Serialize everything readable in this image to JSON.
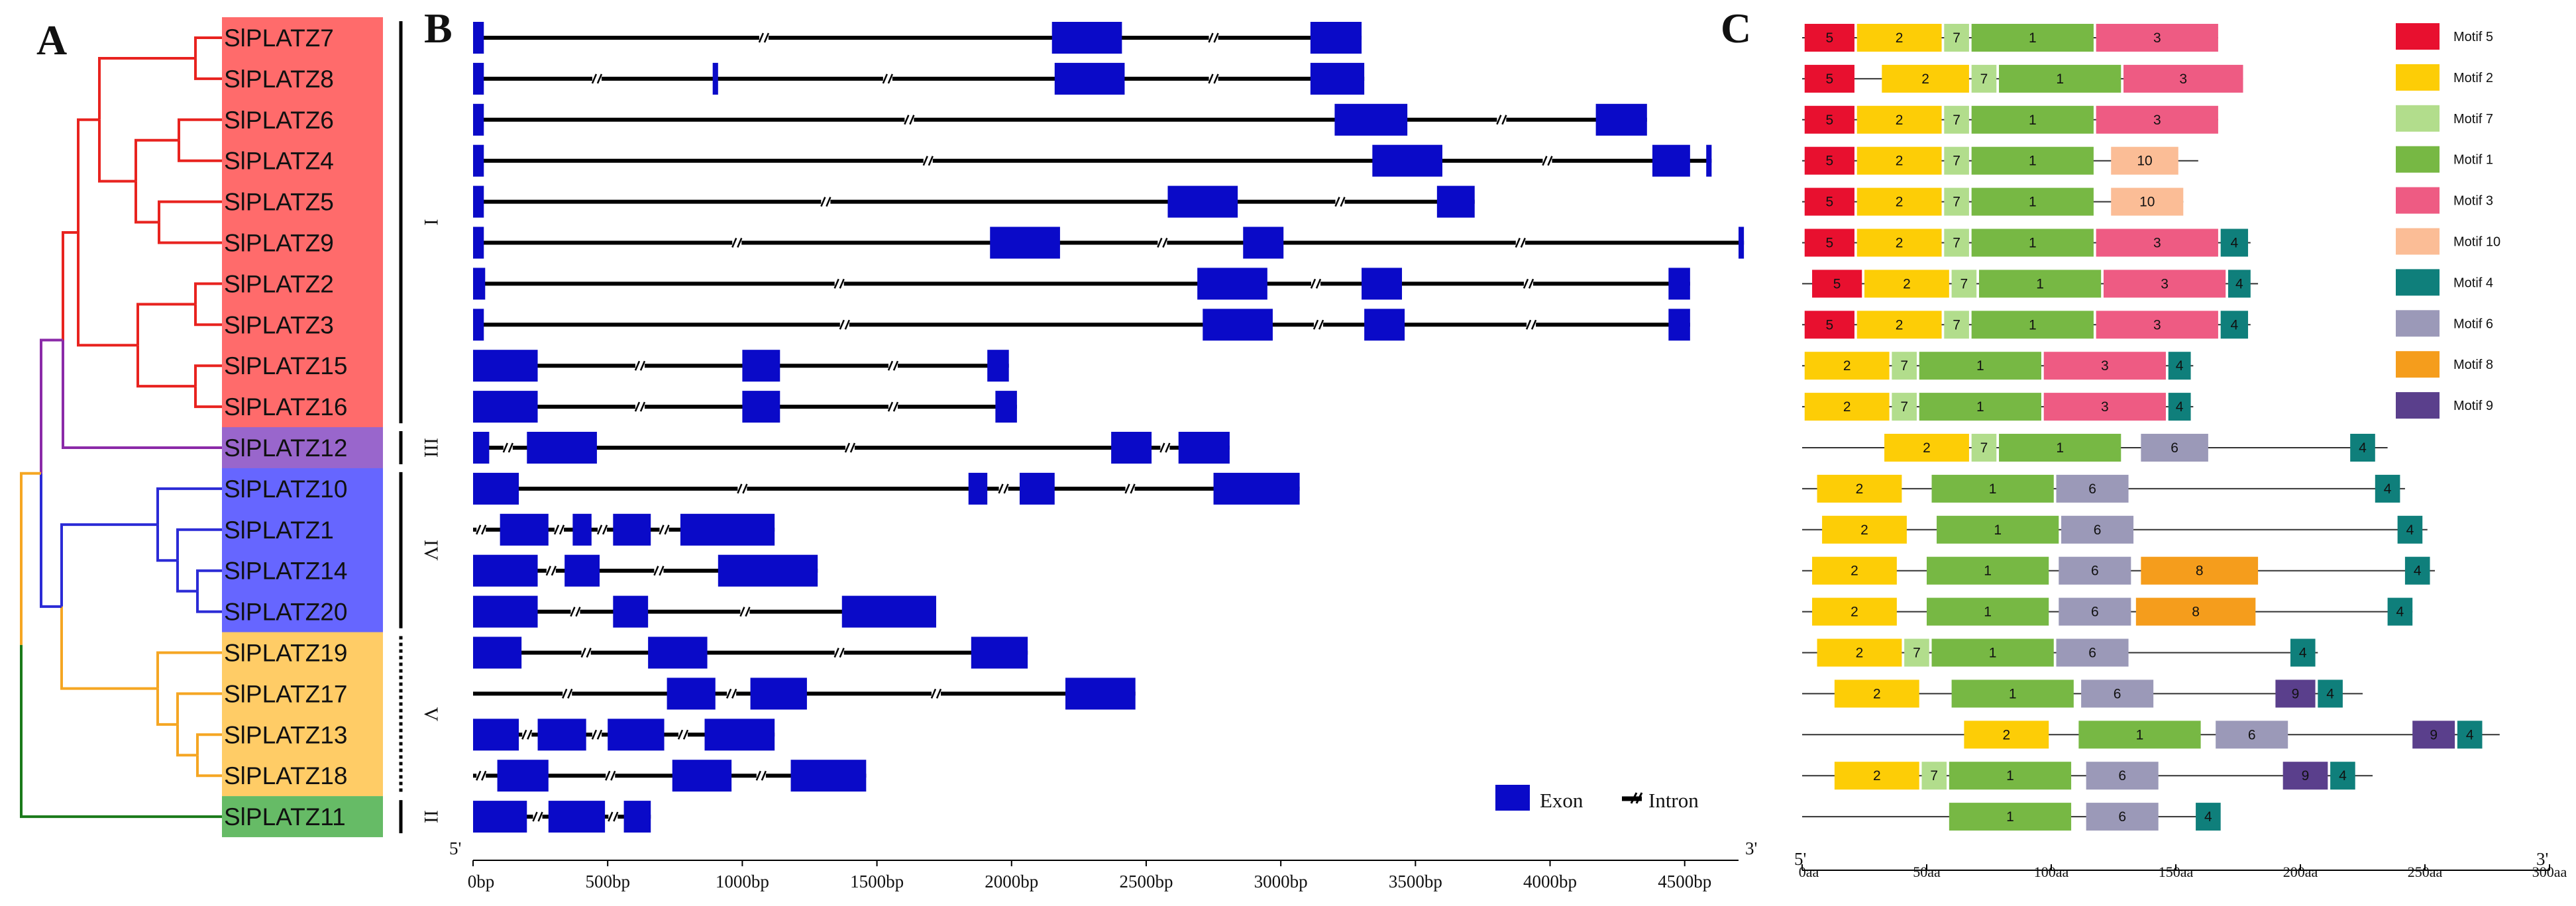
{
  "panel_labels": {
    "a": "A",
    "b": "B",
    "c": "C"
  },
  "genes": [
    "SlPLATZ7",
    "SlPLATZ8",
    "SlPLATZ6",
    "SlPLATZ4",
    "SlPLATZ5",
    "SlPLATZ9",
    "SlPLATZ2",
    "SlPLATZ3",
    "SlPLATZ15",
    "SlPLATZ16",
    "SlPLATZ12",
    "SlPLATZ10",
    "SlPLATZ1",
    "SlPLATZ14",
    "SlPLATZ20",
    "SlPLATZ19",
    "SlPLATZ17",
    "SlPLATZ13",
    "SlPLATZ18",
    "SlPLATZ11"
  ],
  "groups": [
    {
      "label": "I",
      "first": 0,
      "last": 9,
      "color": "#ff6b6b",
      "line": "solid"
    },
    {
      "label": "III",
      "first": 10,
      "last": 10,
      "color": "#9966cc",
      "line": "solid"
    },
    {
      "label": "IV",
      "first": 11,
      "last": 14,
      "color": "#6666ff",
      "line": "solid"
    },
    {
      "label": "V",
      "first": 15,
      "last": 18,
      "color": "#ffcc66",
      "line": "dotted"
    },
    {
      "label": "II",
      "first": 19,
      "last": 19,
      "color": "#66bb66",
      "line": "solid"
    }
  ],
  "tree_colors": {
    "I": "#e8231f",
    "III": "#8b2aa8",
    "IV": "#2b2bd6",
    "V": "#f5a623",
    "II": "#1a7a1a"
  },
  "gene_structure": {
    "axis_ticks": [
      "0bp",
      "500bp",
      "1000bp",
      "1500bp",
      "2000bp",
      "2500bp",
      "3000bp",
      "3500bp",
      "4000bp",
      "4500bp"
    ],
    "axis_tick_values": [
      0,
      500,
      1000,
      1500,
      2000,
      2500,
      3000,
      3500,
      4000,
      4500
    ],
    "x_max": 4700,
    "five_prime": "5'",
    "three_prime": "3'",
    "legend": {
      "exon": "Exon",
      "intron": "Intron"
    },
    "exon_color": "#0a0ac8",
    "genes": [
      {
        "length": 3300,
        "exons": [
          [
            0,
            40
          ],
          [
            2150,
            2410
          ],
          [
            3110,
            3300
          ]
        ],
        "breaks": [
          1080,
          2750
        ]
      },
      {
        "length": 3310,
        "exons": [
          [
            0,
            40
          ],
          [
            890,
            910
          ],
          [
            2160,
            2420
          ],
          [
            3110,
            3310
          ]
        ],
        "breaks": [
          460,
          1540,
          2750
        ]
      },
      {
        "length": 4360,
        "exons": [
          [
            0,
            40
          ],
          [
            3200,
            3470
          ],
          [
            4170,
            4360
          ]
        ],
        "breaks": [
          1620,
          3820
        ]
      },
      {
        "length": 4600,
        "exons": [
          [
            0,
            40
          ],
          [
            3340,
            3600
          ],
          [
            4380,
            4520
          ],
          [
            4580,
            4600
          ]
        ],
        "breaks": [
          1690,
          3990
        ]
      },
      {
        "length": 3720,
        "exons": [
          [
            0,
            40
          ],
          [
            2580,
            2840
          ],
          [
            3580,
            3720
          ]
        ],
        "breaks": [
          1310,
          3220
        ]
      },
      {
        "length": 4720,
        "exons": [
          [
            0,
            40
          ],
          [
            1920,
            2180
          ],
          [
            2860,
            3010
          ],
          [
            4700,
            4720
          ]
        ],
        "breaks": [
          980,
          2560,
          3890
        ]
      },
      {
        "length": 4520,
        "exons": [
          [
            0,
            45
          ],
          [
            2690,
            2950
          ],
          [
            3300,
            3450
          ],
          [
            4440,
            4520
          ]
        ],
        "breaks": [
          1360,
          3130,
          3920
        ]
      },
      {
        "length": 4520,
        "exons": [
          [
            0,
            40
          ],
          [
            2710,
            2970
          ],
          [
            3310,
            3460
          ],
          [
            4440,
            4520
          ]
        ],
        "breaks": [
          1380,
          3140,
          3930
        ]
      },
      {
        "length": 1990,
        "exons": [
          [
            0,
            240
          ],
          [
            1000,
            1140
          ],
          [
            1910,
            1990
          ]
        ],
        "breaks": [
          620,
          1560
        ]
      },
      {
        "length": 2020,
        "exons": [
          [
            0,
            240
          ],
          [
            1000,
            1140
          ],
          [
            1940,
            2020
          ]
        ],
        "breaks": [
          620,
          1560
        ]
      },
      {
        "length": 2810,
        "exons": [
          [
            0,
            60
          ],
          [
            200,
            460
          ],
          [
            2370,
            2520
          ],
          [
            2620,
            2810
          ]
        ],
        "breaks": [
          130,
          1400,
          2570
        ]
      },
      {
        "length": 3070,
        "exons": [
          [
            0,
            170
          ],
          [
            1840,
            1910
          ],
          [
            2030,
            2160
          ],
          [
            2750,
            3070
          ]
        ],
        "breaks": [
          1000,
          1970,
          2440
        ]
      },
      {
        "length": 1120,
        "exons": [
          [
            100,
            280
          ],
          [
            370,
            440
          ],
          [
            520,
            660
          ],
          [
            770,
            1120
          ]
        ],
        "breaks": [
          30,
          320,
          480,
          710
        ]
      },
      {
        "length": 1280,
        "exons": [
          [
            0,
            240
          ],
          [
            340,
            470
          ],
          [
            910,
            1280
          ]
        ],
        "breaks": [
          290,
          690
        ]
      },
      {
        "length": 1720,
        "exons": [
          [
            0,
            240
          ],
          [
            520,
            650
          ],
          [
            1370,
            1720
          ]
        ],
        "breaks": [
          380,
          1010
        ]
      },
      {
        "length": 2060,
        "exons": [
          [
            0,
            180
          ],
          [
            650,
            870
          ],
          [
            1850,
            2060
          ]
        ],
        "breaks": [
          420,
          1360
        ]
      },
      {
        "length": 2460,
        "exons": [
          [
            720,
            900
          ],
          [
            1030,
            1240
          ],
          [
            2200,
            2460
          ]
        ],
        "breaks": [
          350,
          960,
          1720
        ]
      },
      {
        "length": 1120,
        "exons": [
          [
            0,
            170
          ],
          [
            240,
            420
          ],
          [
            500,
            710
          ],
          [
            860,
            1120
          ]
        ],
        "breaks": [
          200,
          460,
          780
        ]
      },
      {
        "length": 1460,
        "exons": [
          [
            90,
            280
          ],
          [
            740,
            960
          ],
          [
            1180,
            1460
          ]
        ],
        "breaks": [
          30,
          510,
          1070
        ]
      },
      {
        "length": 660,
        "exons": [
          [
            0,
            200
          ],
          [
            280,
            490
          ],
          [
            560,
            660
          ]
        ],
        "breaks": [
          240,
          520
        ]
      }
    ]
  },
  "motifs": {
    "legend": [
      {
        "id": "5",
        "label": "Motif 5",
        "color": "#e8102f"
      },
      {
        "id": "2",
        "label": "Motif 2",
        "color": "#fdcd06"
      },
      {
        "id": "7",
        "label": "Motif 7",
        "color": "#b2dd8c"
      },
      {
        "id": "1",
        "label": "Motif 1",
        "color": "#77b844"
      },
      {
        "id": "3",
        "label": "Motif 3",
        "color": "#ee5b83"
      },
      {
        "id": "10",
        "label": "Motif 10",
        "color": "#fbbd96"
      },
      {
        "id": "4",
        "label": "Motif 4",
        "color": "#0f7f7b"
      },
      {
        "id": "6",
        "label": "Motif 6",
        "color": "#9b99b8"
      },
      {
        "id": "8",
        "label": "Motif 8",
        "color": "#f59d1c"
      },
      {
        "id": "9",
        "label": "Motif 9",
        "color": "#5a3f8c"
      }
    ],
    "axis_ticks": [
      "0aa",
      "50aa",
      "100aa",
      "150aa",
      "200aa",
      "250aa",
      "300aa"
    ],
    "axis_tick_values": [
      0,
      50,
      100,
      150,
      200,
      250,
      300
    ],
    "x_max": 300,
    "five_prime": "5'",
    "three_prime": "3'",
    "proteins": [
      {
        "length": 167,
        "motifs": [
          [
            "5",
            1,
            21
          ],
          [
            "2",
            22,
            56
          ],
          [
            "7",
            57,
            67
          ],
          [
            "1",
            68,
            117
          ],
          [
            "3",
            118,
            167
          ]
        ]
      },
      {
        "length": 177,
        "motifs": [
          [
            "5",
            1,
            21
          ],
          [
            "2",
            32,
            67
          ],
          [
            "7",
            68,
            78
          ],
          [
            "1",
            79,
            128
          ],
          [
            "3",
            129,
            177
          ]
        ]
      },
      {
        "length": 167,
        "motifs": [
          [
            "5",
            1,
            21
          ],
          [
            "2",
            22,
            56
          ],
          [
            "7",
            57,
            67
          ],
          [
            "1",
            68,
            117
          ],
          [
            "3",
            118,
            167
          ]
        ]
      },
      {
        "length": 159,
        "motifs": [
          [
            "5",
            1,
            21
          ],
          [
            "2",
            22,
            56
          ],
          [
            "7",
            57,
            67
          ],
          [
            "1",
            68,
            117
          ],
          [
            "10",
            124,
            151
          ]
        ]
      },
      {
        "length": 153,
        "motifs": [
          [
            "5",
            1,
            21
          ],
          [
            "2",
            22,
            56
          ],
          [
            "7",
            57,
            67
          ],
          [
            "1",
            68,
            117
          ],
          [
            "10",
            124,
            153
          ]
        ]
      },
      {
        "length": 180,
        "motifs": [
          [
            "5",
            1,
            21
          ],
          [
            "2",
            22,
            56
          ],
          [
            "7",
            57,
            67
          ],
          [
            "1",
            68,
            117
          ],
          [
            "3",
            118,
            167
          ],
          [
            "4",
            168,
            179
          ]
        ]
      },
      {
        "length": 183,
        "motifs": [
          [
            "5",
            4,
            24
          ],
          [
            "2",
            25,
            59
          ],
          [
            "7",
            60,
            70
          ],
          [
            "1",
            71,
            120
          ],
          [
            "3",
            121,
            170
          ],
          [
            "4",
            171,
            180
          ]
        ]
      },
      {
        "length": 180,
        "motifs": [
          [
            "5",
            1,
            21
          ],
          [
            "2",
            22,
            56
          ],
          [
            "7",
            57,
            67
          ],
          [
            "1",
            68,
            117
          ],
          [
            "3",
            118,
            167
          ],
          [
            "4",
            168,
            179
          ]
        ]
      },
      {
        "length": 157,
        "motifs": [
          [
            "2",
            1,
            35
          ],
          [
            "7",
            36,
            46
          ],
          [
            "1",
            47,
            96
          ],
          [
            "3",
            97,
            146
          ],
          [
            "4",
            147,
            156
          ]
        ]
      },
      {
        "length": 157,
        "motifs": [
          [
            "2",
            1,
            35
          ],
          [
            "7",
            36,
            46
          ],
          [
            "1",
            47,
            96
          ],
          [
            "3",
            97,
            146
          ],
          [
            "4",
            147,
            156
          ]
        ]
      },
      {
        "length": 235,
        "motifs": [
          [
            "2",
            33,
            67
          ],
          [
            "7",
            68,
            78
          ],
          [
            "1",
            79,
            128
          ],
          [
            "6",
            136,
            163
          ],
          [
            "4",
            220,
            230
          ]
        ]
      },
      {
        "length": 242,
        "motifs": [
          [
            "2",
            6,
            40
          ],
          [
            "1",
            52,
            101
          ],
          [
            "6",
            102,
            131
          ],
          [
            "4",
            230,
            240
          ]
        ]
      },
      {
        "length": 251,
        "motifs": [
          [
            "2",
            8,
            42
          ],
          [
            "1",
            54,
            103
          ],
          [
            "6",
            104,
            133
          ],
          [
            "4",
            239,
            249
          ]
        ]
      },
      {
        "length": 254,
        "motifs": [
          [
            "2",
            4,
            38
          ],
          [
            "1",
            50,
            99
          ],
          [
            "6",
            103,
            132
          ],
          [
            "8",
            136,
            183
          ],
          [
            "4",
            242,
            252
          ]
        ]
      },
      {
        "length": 245,
        "motifs": [
          [
            "2",
            4,
            38
          ],
          [
            "1",
            50,
            99
          ],
          [
            "6",
            103,
            132
          ],
          [
            "8",
            134,
            182
          ],
          [
            "4",
            235,
            245
          ]
        ]
      },
      {
        "length": 207,
        "motifs": [
          [
            "2",
            6,
            40
          ],
          [
            "7",
            41,
            51
          ],
          [
            "1",
            52,
            101
          ],
          [
            "6",
            102,
            131
          ],
          [
            "4",
            196,
            206
          ]
        ]
      },
      {
        "length": 225,
        "motifs": [
          [
            "2",
            13,
            47
          ],
          [
            "1",
            60,
            109
          ],
          [
            "6",
            112,
            141
          ],
          [
            "9",
            190,
            206
          ],
          [
            "4",
            207,
            217
          ]
        ]
      },
      {
        "length": 280,
        "motifs": [
          [
            "2",
            65,
            99
          ],
          [
            "1",
            111,
            160
          ],
          [
            "6",
            166,
            195
          ],
          [
            "9",
            245,
            262
          ],
          [
            "4",
            263,
            273
          ]
        ]
      },
      {
        "length": 229,
        "motifs": [
          [
            "2",
            13,
            47
          ],
          [
            "7",
            48,
            58
          ],
          [
            "1",
            59,
            108
          ],
          [
            "6",
            114,
            143
          ],
          [
            "9",
            193,
            211
          ],
          [
            "4",
            212,
            222
          ]
        ]
      },
      {
        "length": 165,
        "motifs": [
          [
            "1",
            59,
            108
          ],
          [
            "6",
            114,
            143
          ],
          [
            "4",
            158,
            168
          ]
        ]
      }
    ]
  }
}
